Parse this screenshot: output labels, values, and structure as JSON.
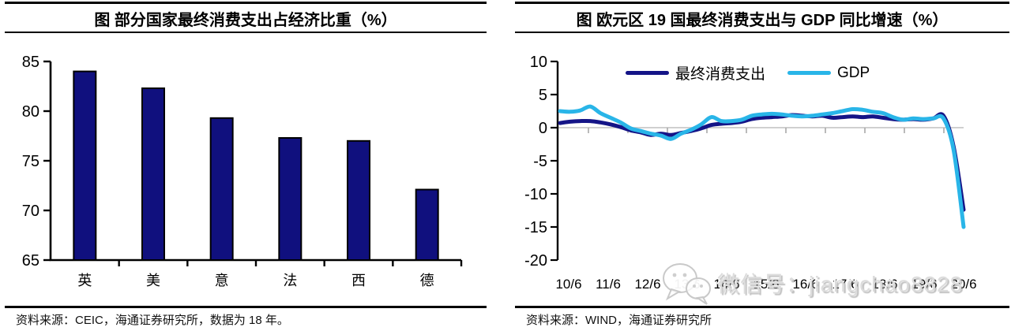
{
  "left_panel": {
    "title": "图 部分国家最终消费支出占经济比重（%）",
    "source": "资料来源：CEIC，海通证券研究所，数据为 18 年。"
  },
  "right_panel": {
    "title": "图 欧元区 19 国最终消费支出与 GDP 同比增速（%）",
    "source": "资料来源：WIND，海通证券研究所"
  },
  "watermark": {
    "wechat_id": "微信号：jiangchao8828",
    "icon": "wechat-logo"
  },
  "colors": {
    "bar": "#10107e",
    "bar_border": "#000000",
    "axis": "#000000",
    "zero_gridline": "#c9c9c9",
    "x_tick": "#a9a9a9",
    "obscured_label": "#bdbdbd"
  },
  "chart_data": [
    {
      "type": "bar",
      "title": "图 部分国家最终消费支出占经济比重（%）",
      "categories": [
        "英",
        "美",
        "意",
        "法",
        "西",
        "德"
      ],
      "values": [
        84.0,
        82.3,
        79.3,
        77.3,
        77.0,
        72.1
      ],
      "ylim": [
        65,
        85
      ],
      "yticks": [
        85,
        80,
        75,
        70,
        65
      ],
      "grid": false,
      "bar_color": "#10107e",
      "source": "资料来源：CEIC，海通证券研究所，数据为 18 年。"
    },
    {
      "type": "line",
      "title": "图 欧元区 19 国最终消费支出与 GDP 同比增速（%）",
      "x_tick_labels": [
        "10/6",
        "11/6",
        "12/6",
        "13/6",
        "14/6",
        "15/6",
        "16/6",
        "17/6",
        "18/6",
        "19/6",
        "20/6"
      ],
      "x_frequency": "quarterly",
      "obscured_x_label_index": 3,
      "ylim": [
        -20,
        10
      ],
      "yticks": [
        10,
        5,
        0,
        -5,
        -10,
        -15,
        -20
      ],
      "grid": "zero-line-only",
      "legend_position": "top",
      "series": [
        {
          "name": "最终消费支出",
          "color": "#141487",
          "values": [
            0.7,
            0.9,
            1.0,
            1.0,
            0.8,
            0.5,
            0.1,
            -0.4,
            -0.7,
            -1.1,
            -0.9,
            -1.1,
            -0.8,
            -0.5,
            -0.1,
            0.4,
            0.6,
            0.7,
            0.9,
            1.3,
            1.5,
            1.6,
            1.7,
            1.9,
            1.8,
            1.7,
            1.8,
            1.5,
            1.6,
            1.7,
            1.6,
            1.7,
            1.5,
            1.3,
            1.2,
            1.3,
            1.2,
            1.4,
            1.8,
            -2.8,
            -12.4
          ]
        },
        {
          "name": "GDP",
          "color": "#29b5e8",
          "values": [
            2.5,
            2.4,
            2.6,
            3.2,
            2.2,
            1.5,
            0.8,
            -0.1,
            -0.5,
            -0.9,
            -1.2,
            -1.7,
            -0.9,
            -0.3,
            0.5,
            1.6,
            1.0,
            1.0,
            1.2,
            1.8,
            2.0,
            2.1,
            2.0,
            1.8,
            1.7,
            1.8,
            2.0,
            2.2,
            2.5,
            2.8,
            2.7,
            2.4,
            2.2,
            1.6,
            1.2,
            1.4,
            1.3,
            1.4,
            1.4,
            -3.3,
            -15.0
          ]
        }
      ],
      "source": "资料来源：WIND，海通证券研究所"
    }
  ]
}
